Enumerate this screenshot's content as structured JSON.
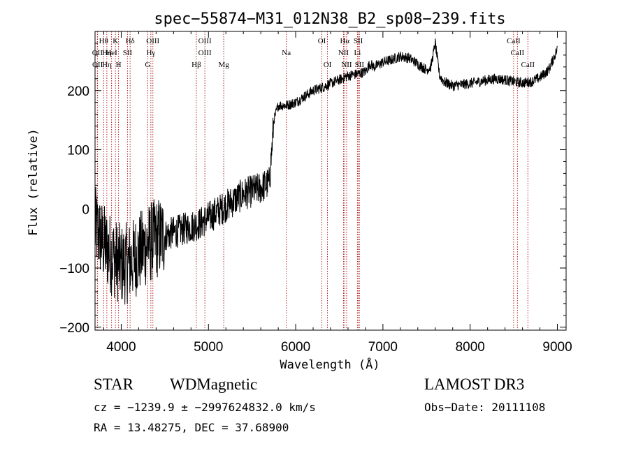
{
  "chart_data": {
    "type": "line",
    "title": "spec−55874−M31_012N38_B2_sp08−239.fits",
    "xlabel": "Wavelength (Å)",
    "ylabel": "Flux (relative)",
    "xlim": [
      3700,
      9100
    ],
    "ylim": [
      -205,
      300
    ],
    "xticks": [
      4000,
      5000,
      6000,
      7000,
      8000,
      9000
    ],
    "xtick_labels": [
      "4000",
      "5000",
      "6000",
      "7000",
      "8000",
      "9000"
    ],
    "yticks": [
      -200,
      -100,
      0,
      100,
      200
    ],
    "ytick_labels": [
      "−200",
      "−100",
      "0",
      "100",
      "200"
    ],
    "series": [
      {
        "name": "flux",
        "color": "#000000",
        "x": [
          3700,
          3800,
          3900,
          4000,
          4100,
          4200,
          4300,
          4400,
          4500,
          4600,
          4700,
          4800,
          4900,
          5000,
          5100,
          5200,
          5300,
          5400,
          5500,
          5600,
          5700,
          5750,
          5800,
          5900,
          6000,
          6100,
          6200,
          6300,
          6400,
          6500,
          6600,
          6700,
          6800,
          6850,
          6900,
          7000,
          7100,
          7200,
          7300,
          7400,
          7500,
          7550,
          7600,
          7650,
          7700,
          7800,
          7900,
          8000,
          8100,
          8200,
          8300,
          8400,
          8500,
          8600,
          8700,
          8800,
          8900,
          9000
        ],
        "y": [
          -30,
          -60,
          -80,
          -95,
          -90,
          -75,
          -60,
          -50,
          -45,
          -40,
          -35,
          -30,
          -25,
          -15,
          -5,
          5,
          15,
          25,
          30,
          35,
          45,
          150,
          175,
          175,
          180,
          190,
          200,
          205,
          212,
          218,
          225,
          228,
          232,
          245,
          240,
          248,
          252,
          258,
          255,
          245,
          235,
          240,
          280,
          225,
          215,
          208,
          210,
          212,
          215,
          218,
          220,
          218,
          215,
          213,
          215,
          222,
          235,
          270
        ]
      }
    ],
    "line_markers": [
      {
        "label": "Hθ",
        "x": 3798,
        "row": 0
      },
      {
        "label": "OII",
        "x": 3727,
        "row": 1
      },
      {
        "label": "OII",
        "x": 3729,
        "row": 2
      },
      {
        "label": "Hη",
        "x": 3835,
        "row": 1
      },
      {
        "label": "Hη",
        "x": 3835,
        "row": 2
      },
      {
        "label": "K",
        "x": 3934,
        "row": 0
      },
      {
        "label": "HeI",
        "x": 3889,
        "row": 1
      },
      {
        "label": "H",
        "x": 3969,
        "row": 2
      },
      {
        "label": "SII",
        "x": 4072,
        "row": 1
      },
      {
        "label": "Hδ",
        "x": 4102,
        "row": 0
      },
      {
        "label": "OIII",
        "x": 4363,
        "row": 0
      },
      {
        "label": "Hγ",
        "x": 4340,
        "row": 1
      },
      {
        "label": "G",
        "x": 4304,
        "row": 2
      },
      {
        "label": "OIII",
        "x": 4959,
        "row": 0
      },
      {
        "label": "OIII",
        "x": 4959,
        "row": 1
      },
      {
        "label": "Hβ",
        "x": 4861,
        "row": 2
      },
      {
        "label": "Mg",
        "x": 5175,
        "row": 2
      },
      {
        "label": "Na",
        "x": 5893,
        "row": 1
      },
      {
        "label": "OI",
        "x": 6300,
        "row": 0
      },
      {
        "label": "OI",
        "x": 6364,
        "row": 2
      },
      {
        "label": "Hα",
        "x": 6563,
        "row": 0
      },
      {
        "label": "NII",
        "x": 6548,
        "row": 1
      },
      {
        "label": "NII",
        "x": 6584,
        "row": 2
      },
      {
        "label": "SII",
        "x": 6717,
        "row": 0
      },
      {
        "label": "Li",
        "x": 6708,
        "row": 1
      },
      {
        "label": "SII",
        "x": 6731,
        "row": 2
      },
      {
        "label": "CaII",
        "x": 8498,
        "row": 0
      },
      {
        "label": "CaII",
        "x": 8542,
        "row": 1
      },
      {
        "label": "CaII",
        "x": 8662,
        "row": 2
      }
    ],
    "marker_color": "#b22222"
  },
  "footer": {
    "class_label": "STAR",
    "subclass_label": "WDMagnetic",
    "survey_label": "LAMOST DR3",
    "cz_text": "cz = −1239.9 ± −2997624832.0 km/s",
    "obs_date_text": "Obs−Date: 20111108",
    "radec_text": "RA =  13.48275, DEC =  37.68900"
  }
}
